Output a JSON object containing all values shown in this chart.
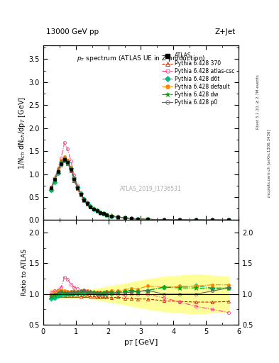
{
  "title_top_left": "13000 GeV pp",
  "title_top_right": "Z+Jet",
  "plot_title": "p_{T} spectrum (ATLAS UE in Z production)",
  "ylabel_main": "1/N$_{ch}$ dN$_{ch}$/dp$_{T}$ [GeV]",
  "ylabel_ratio": "Ratio to ATLAS",
  "xlabel": "p$_{T}$ [GeV]",
  "xlim": [
    0,
    6
  ],
  "ylim_main": [
    0,
    3.8
  ],
  "ylim_ratio": [
    0.5,
    2.2
  ],
  "watermark": "ATLAS_2019_I1736531",
  "right_label1": "Rivet 3.1.10, ≥ 2.7M events",
  "right_label2": "mcplots.cern.ch [arXiv:1306.3436]",
  "series": [
    {
      "label": "ATLAS",
      "color": "#000000",
      "marker": "s",
      "linestyle": "none",
      "filled": true,
      "pt": [
        0.25,
        0.35,
        0.45,
        0.55,
        0.65,
        0.75,
        0.85,
        0.95,
        1.05,
        1.15,
        1.25,
        1.35,
        1.45,
        1.55,
        1.65,
        1.75,
        1.85,
        1.95,
        2.1,
        2.3,
        2.5,
        2.7,
        2.9,
        3.2,
        3.7,
        4.2,
        4.7,
        5.2,
        5.7
      ],
      "values": [
        0.7,
        0.88,
        1.05,
        1.22,
        1.32,
        1.25,
        1.1,
        0.88,
        0.7,
        0.56,
        0.44,
        0.36,
        0.29,
        0.24,
        0.2,
        0.165,
        0.138,
        0.115,
        0.088,
        0.062,
        0.045,
        0.032,
        0.024,
        0.016,
        0.009,
        0.005,
        0.003,
        0.002,
        0.001
      ],
      "ratio": [
        1.0,
        1.0,
        1.0,
        1.0,
        1.0,
        1.0,
        1.0,
        1.0,
        1.0,
        1.0,
        1.0,
        1.0,
        1.0,
        1.0,
        1.0,
        1.0,
        1.0,
        1.0,
        1.0,
        1.0,
        1.0,
        1.0,
        1.0,
        1.0,
        1.0,
        1.0,
        1.0,
        1.0,
        1.0
      ]
    },
    {
      "label": "Pythia 6.428 370",
      "color": "#cc2200",
      "marker": "^",
      "linestyle": "--",
      "filled": false,
      "pt": [
        0.25,
        0.35,
        0.45,
        0.55,
        0.65,
        0.75,
        0.85,
        0.95,
        1.05,
        1.15,
        1.25,
        1.35,
        1.45,
        1.55,
        1.65,
        1.75,
        1.85,
        1.95,
        2.1,
        2.3,
        2.5,
        2.7,
        2.9,
        3.2,
        3.7,
        4.2,
        4.7,
        5.2,
        5.7
      ],
      "values": [
        0.68,
        0.86,
        1.02,
        1.19,
        1.28,
        1.22,
        1.07,
        0.86,
        0.68,
        0.54,
        0.43,
        0.35,
        0.28,
        0.23,
        0.19,
        0.157,
        0.131,
        0.11,
        0.083,
        0.059,
        0.042,
        0.03,
        0.022,
        0.015,
        0.008,
        0.005,
        0.003,
        0.002,
        0.001
      ],
      "ratio": [
        0.97,
        0.97,
        0.97,
        0.97,
        0.97,
        0.97,
        0.97,
        0.97,
        0.97,
        0.96,
        0.97,
        0.97,
        0.96,
        0.96,
        0.95,
        0.95,
        0.95,
        0.95,
        0.94,
        0.95,
        0.93,
        0.93,
        0.92,
        0.92,
        0.89,
        0.88,
        0.87,
        0.87,
        0.88
      ]
    },
    {
      "label": "Pythia 6.428 atlas-csc",
      "color": "#ff4488",
      "marker": "o",
      "linestyle": "-.",
      "filled": false,
      "pt": [
        0.25,
        0.35,
        0.45,
        0.55,
        0.65,
        0.75,
        0.85,
        0.95,
        1.05,
        1.15,
        1.25,
        1.35,
        1.45,
        1.55,
        1.65,
        1.75,
        1.85,
        1.95,
        2.1,
        2.3,
        2.5,
        2.7,
        2.9,
        3.2,
        3.7,
        4.2,
        4.7,
        5.2,
        5.7
      ],
      "values": [
        0.72,
        0.92,
        1.12,
        1.35,
        1.68,
        1.55,
        1.28,
        0.98,
        0.76,
        0.59,
        0.47,
        0.38,
        0.3,
        0.245,
        0.2,
        0.165,
        0.138,
        0.115,
        0.088,
        0.062,
        0.044,
        0.032,
        0.024,
        0.016,
        0.009,
        0.005,
        0.003,
        0.002,
        0.001
      ],
      "ratio": [
        1.03,
        1.05,
        1.07,
        1.11,
        1.27,
        1.24,
        1.16,
        1.11,
        1.09,
        1.05,
        1.07,
        1.06,
        1.03,
        1.02,
        1.0,
        1.0,
        1.0,
        1.0,
        1.0,
        1.0,
        0.98,
        1.0,
        1.0,
        1.0,
        0.94,
        0.87,
        0.8,
        0.75,
        0.7
      ]
    },
    {
      "label": "Pythia 6.428 d6t",
      "color": "#00bb88",
      "marker": "D",
      "linestyle": "-.",
      "filled": true,
      "pt": [
        0.25,
        0.35,
        0.45,
        0.55,
        0.65,
        0.75,
        0.85,
        0.95,
        1.05,
        1.15,
        1.25,
        1.35,
        1.45,
        1.55,
        1.65,
        1.75,
        1.85,
        1.95,
        2.1,
        2.3,
        2.5,
        2.7,
        2.9,
        3.2,
        3.7,
        4.2,
        4.7,
        5.2,
        5.7
      ],
      "values": [
        0.65,
        0.83,
        1.02,
        1.22,
        1.32,
        1.26,
        1.11,
        0.9,
        0.71,
        0.57,
        0.45,
        0.37,
        0.3,
        0.245,
        0.202,
        0.167,
        0.14,
        0.117,
        0.09,
        0.064,
        0.047,
        0.034,
        0.025,
        0.017,
        0.01,
        0.006,
        0.004,
        0.002,
        0.001
      ],
      "ratio": [
        0.93,
        0.94,
        0.97,
        1.0,
        1.0,
        1.01,
        1.01,
        1.02,
        1.01,
        1.02,
        1.02,
        1.03,
        1.03,
        1.02,
        1.01,
        1.01,
        1.01,
        1.02,
        1.02,
        1.03,
        1.04,
        1.06,
        1.04,
        1.06,
        1.11,
        1.12,
        1.13,
        1.1,
        1.1
      ]
    },
    {
      "label": "Pythia 6.428 default",
      "color": "#ff8800",
      "marker": "o",
      "linestyle": "-.",
      "filled": true,
      "pt": [
        0.25,
        0.35,
        0.45,
        0.55,
        0.65,
        0.75,
        0.85,
        0.95,
        1.05,
        1.15,
        1.25,
        1.35,
        1.45,
        1.55,
        1.65,
        1.75,
        1.85,
        1.95,
        2.1,
        2.3,
        2.5,
        2.7,
        2.9,
        3.2,
        3.7,
        4.2,
        4.7,
        5.2,
        5.7
      ],
      "values": [
        0.7,
        0.9,
        1.1,
        1.3,
        1.38,
        1.3,
        1.14,
        0.92,
        0.73,
        0.58,
        0.46,
        0.38,
        0.3,
        0.248,
        0.205,
        0.17,
        0.142,
        0.119,
        0.092,
        0.065,
        0.048,
        0.035,
        0.026,
        0.018,
        0.01,
        0.006,
        0.004,
        0.003,
        0.002
      ],
      "ratio": [
        1.0,
        1.02,
        1.05,
        1.07,
        1.05,
        1.04,
        1.04,
        1.05,
        1.04,
        1.04,
        1.05,
        1.06,
        1.03,
        1.03,
        1.03,
        1.03,
        1.03,
        1.04,
        1.05,
        1.05,
        1.07,
        1.09,
        1.08,
        1.13,
        1.11,
        1.12,
        1.13,
        1.15,
        1.15
      ]
    },
    {
      "label": "Pythia 6.428 dw",
      "color": "#00aa00",
      "marker": "*",
      "linestyle": "-.",
      "filled": true,
      "pt": [
        0.25,
        0.35,
        0.45,
        0.55,
        0.65,
        0.75,
        0.85,
        0.95,
        1.05,
        1.15,
        1.25,
        1.35,
        1.45,
        1.55,
        1.65,
        1.75,
        1.85,
        1.95,
        2.1,
        2.3,
        2.5,
        2.7,
        2.9,
        3.2,
        3.7,
        4.2,
        4.7,
        5.2,
        5.7
      ],
      "values": [
        0.67,
        0.87,
        1.06,
        1.26,
        1.34,
        1.27,
        1.12,
        0.91,
        0.72,
        0.58,
        0.46,
        0.37,
        0.3,
        0.246,
        0.203,
        0.168,
        0.141,
        0.118,
        0.091,
        0.064,
        0.047,
        0.034,
        0.025,
        0.017,
        0.01,
        0.006,
        0.004,
        0.003,
        0.002
      ],
      "ratio": [
        0.96,
        0.99,
        1.01,
        1.03,
        1.02,
        1.02,
        1.02,
        1.03,
        1.03,
        1.04,
        1.05,
        1.03,
        1.03,
        1.03,
        1.02,
        1.02,
        1.02,
        1.03,
        1.03,
        1.03,
        1.04,
        1.06,
        1.04,
        1.06,
        1.11,
        1.1,
        1.1,
        1.08,
        1.1
      ]
    },
    {
      "label": "Pythia 6.428 p0",
      "color": "#666666",
      "marker": "o",
      "linestyle": "-",
      "filled": false,
      "pt": [
        0.25,
        0.35,
        0.45,
        0.55,
        0.65,
        0.75,
        0.85,
        0.95,
        1.05,
        1.15,
        1.25,
        1.35,
        1.45,
        1.55,
        1.65,
        1.75,
        1.85,
        1.95,
        2.1,
        2.3,
        2.5,
        2.7,
        2.9,
        3.2,
        3.7,
        4.2,
        4.7,
        5.2,
        5.7
      ],
      "values": [
        0.69,
        0.88,
        1.07,
        1.27,
        1.35,
        1.28,
        1.13,
        0.91,
        0.72,
        0.58,
        0.46,
        0.37,
        0.3,
        0.245,
        0.202,
        0.167,
        0.14,
        0.117,
        0.09,
        0.063,
        0.046,
        0.033,
        0.025,
        0.017,
        0.009,
        0.005,
        0.003,
        0.002,
        0.001
      ],
      "ratio": [
        0.99,
        1.0,
        1.02,
        1.04,
        1.02,
        1.02,
        1.03,
        1.03,
        1.03,
        1.04,
        1.05,
        1.03,
        1.03,
        1.02,
        1.01,
        1.01,
        1.01,
        1.02,
        1.02,
        1.02,
        1.02,
        1.03,
        1.04,
        1.06,
        1.0,
        1.0,
        1.0,
        1.05,
        1.1
      ]
    }
  ],
  "atlas_band_color": "#ffff99",
  "atlas_band_pt": [
    0.25,
    0.35,
    0.45,
    0.55,
    0.65,
    0.75,
    0.85,
    0.95,
    1.05,
    1.15,
    1.25,
    1.35,
    1.45,
    1.55,
    1.65,
    1.75,
    1.85,
    1.95,
    2.1,
    2.3,
    2.5,
    2.7,
    2.9,
    3.2,
    3.7,
    4.2,
    4.7,
    5.2,
    5.7
  ],
  "atlas_band_upper": [
    1.08,
    1.07,
    1.06,
    1.06,
    1.06,
    1.06,
    1.06,
    1.06,
    1.06,
    1.06,
    1.06,
    1.06,
    1.07,
    1.08,
    1.09,
    1.1,
    1.11,
    1.12,
    1.13,
    1.15,
    1.17,
    1.19,
    1.21,
    1.24,
    1.28,
    1.3,
    1.32,
    1.3,
    1.28
  ],
  "atlas_band_lower": [
    0.92,
    0.93,
    0.94,
    0.94,
    0.94,
    0.94,
    0.94,
    0.94,
    0.94,
    0.94,
    0.94,
    0.94,
    0.93,
    0.92,
    0.91,
    0.9,
    0.89,
    0.88,
    0.87,
    0.85,
    0.83,
    0.81,
    0.79,
    0.76,
    0.72,
    0.7,
    0.68,
    0.7,
    0.72
  ]
}
